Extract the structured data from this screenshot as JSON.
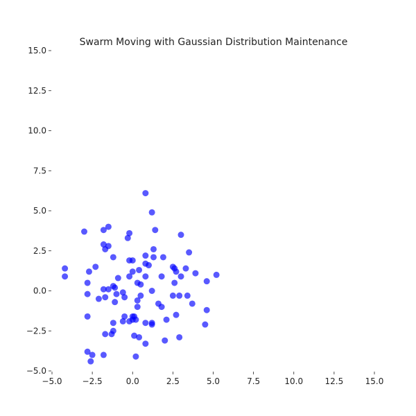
{
  "chart_data": {
    "type": "scatter",
    "title": "Swarm Moving with Gaussian Distribution Maintenance",
    "xlabel": "",
    "ylabel": "",
    "xlim": [
      -5.0,
      15.0
    ],
    "ylim": [
      -5.0,
      15.0
    ],
    "x_ticks": [
      "−5.0",
      "−2.5",
      "0.0",
      "2.5",
      "5.0",
      "7.5",
      "10.0",
      "12.5",
      "15.0"
    ],
    "y_ticks": [
      "−5.0",
      "−2.5",
      "0.0",
      "2.5",
      "5.0",
      "7.5",
      "10.0",
      "12.5",
      "15.0"
    ],
    "grid": false,
    "legend": false,
    "marker_color": "#0000ff",
    "series": [
      {
        "points": [
          [
            0.8,
            6.1
          ],
          [
            1.2,
            4.9
          ],
          [
            -3.0,
            3.7
          ],
          [
            -1.5,
            4.0
          ],
          [
            -1.8,
            3.8
          ],
          [
            -0.2,
            3.6
          ],
          [
            -0.3,
            3.3
          ],
          [
            1.4,
            3.8
          ],
          [
            3.0,
            3.5
          ],
          [
            -1.8,
            2.9
          ],
          [
            -1.5,
            2.8
          ],
          [
            -1.7,
            2.6
          ],
          [
            1.3,
            2.6
          ],
          [
            3.5,
            2.4
          ],
          [
            0.8,
            2.2
          ],
          [
            1.3,
            2.1
          ],
          [
            1.9,
            2.1
          ],
          [
            -1.2,
            2.1
          ],
          [
            -0.2,
            1.9
          ],
          [
            0.0,
            1.9
          ],
          [
            0.8,
            1.7
          ],
          [
            1.0,
            1.6
          ],
          [
            2.5,
            1.5
          ],
          [
            2.6,
            1.4
          ],
          [
            3.3,
            1.4
          ],
          [
            0.4,
            1.3
          ],
          [
            0.0,
            1.2
          ],
          [
            2.7,
            1.2
          ],
          [
            -4.2,
            1.4
          ],
          [
            -2.3,
            1.5
          ],
          [
            -2.7,
            1.2
          ],
          [
            -4.2,
            0.9
          ],
          [
            -0.2,
            0.9
          ],
          [
            0.8,
            0.9
          ],
          [
            1.8,
            0.9
          ],
          [
            3.0,
            0.9
          ],
          [
            3.9,
            1.1
          ],
          [
            4.6,
            0.6
          ],
          [
            5.2,
            1.0
          ],
          [
            -2.8,
            0.5
          ],
          [
            -0.9,
            0.8
          ],
          [
            0.3,
            0.5
          ],
          [
            0.5,
            0.4
          ],
          [
            2.6,
            0.5
          ],
          [
            -1.2,
            0.3
          ],
          [
            -1.8,
            0.1
          ],
          [
            -1.5,
            0.1
          ],
          [
            -1.1,
            0.2
          ],
          [
            1.2,
            0.0
          ],
          [
            -0.6,
            -0.1
          ],
          [
            -1.0,
            -0.2
          ],
          [
            -2.8,
            -0.2
          ],
          [
            0.5,
            -0.3
          ],
          [
            2.5,
            -0.3
          ],
          [
            2.9,
            -0.3
          ],
          [
            3.4,
            -0.3
          ],
          [
            -0.5,
            -0.4
          ],
          [
            -2.1,
            -0.5
          ],
          [
            -1.7,
            -0.4
          ],
          [
            -1.1,
            -0.7
          ],
          [
            0.3,
            -0.6
          ],
          [
            1.6,
            -0.8
          ],
          [
            3.7,
            -0.8
          ],
          [
            1.8,
            -1.0
          ],
          [
            0.3,
            -1.0
          ],
          [
            4.6,
            -1.2
          ],
          [
            2.7,
            -1.5
          ],
          [
            -0.5,
            -1.6
          ],
          [
            0.0,
            -1.6
          ],
          [
            0.1,
            -1.6
          ],
          [
            0.0,
            -1.8
          ],
          [
            -0.2,
            -1.9
          ],
          [
            0.2,
            -1.8
          ],
          [
            -0.6,
            -1.9
          ],
          [
            2.1,
            -1.8
          ],
          [
            0.8,
            -2.0
          ],
          [
            1.2,
            -2.0
          ],
          [
            1.2,
            -2.1
          ],
          [
            -1.2,
            -2.0
          ],
          [
            4.5,
            -2.1
          ],
          [
            -2.8,
            -1.6
          ],
          [
            -1.2,
            -2.5
          ],
          [
            -1.7,
            -2.7
          ],
          [
            -1.3,
            -2.7
          ],
          [
            0.1,
            -2.8
          ],
          [
            0.4,
            -2.9
          ],
          [
            2.9,
            -2.9
          ],
          [
            2.0,
            -3.1
          ],
          [
            0.8,
            -3.3
          ],
          [
            -2.8,
            -3.8
          ],
          [
            -2.5,
            -4.0
          ],
          [
            -1.8,
            -4.0
          ],
          [
            0.2,
            -4.1
          ],
          [
            -2.6,
            -4.4
          ]
        ]
      }
    ]
  }
}
